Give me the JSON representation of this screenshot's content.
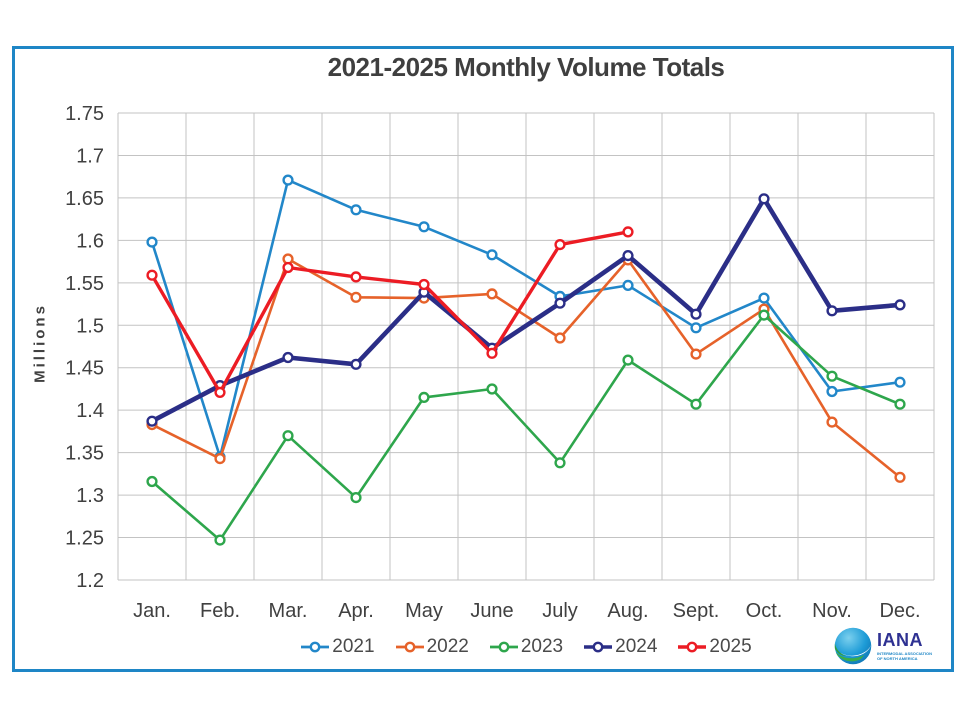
{
  "title": "2021-2025 Monthly Volume Totals",
  "y_axis_title": "Millions",
  "yticks": [
    "1.75",
    "1.7",
    "1.65",
    "1.6",
    "1.55",
    "1.5",
    "1.45",
    "1.4",
    "1.35",
    "1.3",
    "1.25",
    "1.2"
  ],
  "colors": {
    "frame_border": "#1E86C6",
    "grid": "#C3C3C3",
    "axis_text": "#404040",
    "title_text": "#3F3F3F"
  },
  "chart_data": {
    "type": "line",
    "title": "2021-2025 Monthly Volume Totals",
    "ylabel": "Millions",
    "ylim": [
      1.2,
      1.75
    ],
    "ytick_step": 0.05,
    "grid": true,
    "legend_position": "bottom",
    "categories": [
      "Jan.",
      "Feb.",
      "Mar.",
      "Apr.",
      "May",
      "June",
      "July",
      "Aug.",
      "Sept.",
      "Oct.",
      "Nov.",
      "Dec."
    ],
    "series": [
      {
        "name": "2021",
        "color": "#2287C9",
        "line_width": 2.6,
        "values": [
          1.598,
          1.345,
          1.671,
          1.636,
          1.616,
          1.583,
          1.534,
          1.547,
          1.497,
          1.532,
          1.422,
          1.433
        ]
      },
      {
        "name": "2022",
        "color": "#E6622A",
        "line_width": 2.6,
        "values": [
          1.383,
          1.343,
          1.578,
          1.533,
          1.532,
          1.537,
          1.485,
          1.577,
          1.466,
          1.519,
          1.386,
          1.321
        ]
      },
      {
        "name": "2023",
        "color": "#2EA64C",
        "line_width": 2.6,
        "values": [
          1.316,
          1.247,
          1.37,
          1.297,
          1.415,
          1.425,
          1.338,
          1.459,
          1.407,
          1.512,
          1.44,
          1.407
        ]
      },
      {
        "name": "2024",
        "color": "#2B2E87",
        "line_width": 4.6,
        "values": [
          1.387,
          1.429,
          1.462,
          1.454,
          1.539,
          1.473,
          1.526,
          1.582,
          1.513,
          1.649,
          1.517,
          1.524
        ]
      },
      {
        "name": "2025",
        "color": "#EC1C24",
        "line_width": 3.4,
        "values": [
          1.559,
          1.421,
          1.568,
          1.557,
          1.548,
          1.467,
          1.595,
          1.61,
          null,
          null,
          null,
          null
        ]
      }
    ]
  },
  "logo": {
    "wordmark": "IANA",
    "subtext": "INTERMODAL ASSOCIATION OF NORTH AMERICA"
  }
}
